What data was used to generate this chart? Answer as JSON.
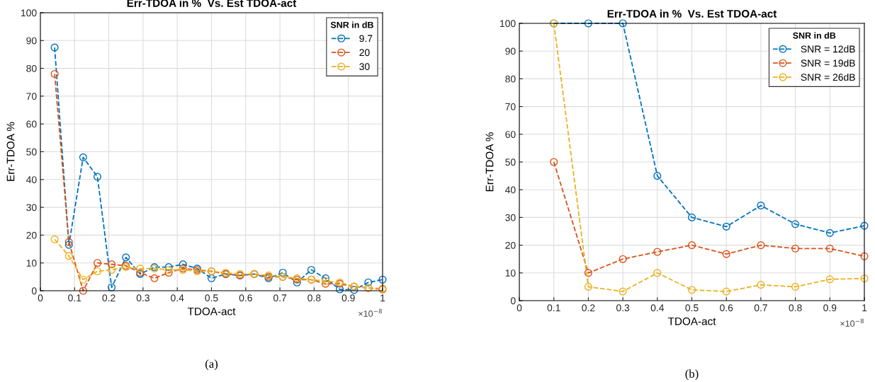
{
  "chart_data": [
    {
      "type": "line",
      "title": "Err-TDOA in %  Vs. Est TDOA-act",
      "xlabel": "TDOA-act",
      "ylabel": "Err-TDOA %",
      "legend_title": "SNR in dB",
      "x": [
        0.0417,
        0.0833,
        0.125,
        0.1667,
        0.2083,
        0.25,
        0.2917,
        0.3333,
        0.375,
        0.4167,
        0.4583,
        0.5,
        0.5417,
        0.5833,
        0.625,
        0.6667,
        0.7083,
        0.75,
        0.7917,
        0.8333,
        0.875,
        0.9167,
        0.9583,
        1.0
      ],
      "series": [
        {
          "name": "9.7",
          "color": "#0072bd",
          "values": [
            87.5,
            16.5,
            48,
            41,
            1.2,
            12,
            6,
            8.5,
            8.5,
            9.5,
            8,
            4.5,
            6,
            5.5,
            6,
            4.5,
            6.5,
            3,
            7.5,
            4.5,
            0.5,
            0.3,
            3,
            4
          ]
        },
        {
          "name": "20",
          "color": "#d95319",
          "values": [
            78,
            17.5,
            0,
            10,
            9.5,
            9,
            6.5,
            4.5,
            6.5,
            8,
            7.5,
            7,
            6,
            5.5,
            6,
            5,
            5,
            4,
            4,
            2.5,
            2.5,
            1.5,
            1,
            0.5
          ]
        },
        {
          "name": "30",
          "color": "#edb120",
          "values": [
            18.5,
            12.5,
            4,
            7,
            7.5,
            8.5,
            8,
            8,
            7.5,
            7.5,
            7,
            7,
            6.5,
            6,
            6,
            5.5,
            5,
            4.5,
            4,
            3.5,
            3,
            1.5,
            1,
            0.8
          ]
        }
      ],
      "xlim": [
        0,
        1
      ],
      "xticks": [
        0,
        0.1,
        0.2,
        0.3,
        0.4,
        0.5,
        0.6,
        0.7,
        0.8,
        0.9,
        1
      ],
      "ylim": [
        0,
        100
      ],
      "yticks": [
        0,
        10,
        20,
        30,
        40,
        50,
        60,
        70,
        80,
        90,
        100
      ],
      "grid": true,
      "legend": "top right",
      "marker": "circle",
      "line_style": "dashed",
      "annotations": [
        "×10$^{−8}$",
        "(a)"
      ]
    },
    {
      "type": "line",
      "title": "Err-TDOA in %  Vs. Est TDOA-act",
      "xlabel": "TDOA-act",
      "ylabel": "Err-TDOA %",
      "legend_title": "SNR in dB",
      "x": [
        0.1,
        0.2,
        0.3,
        0.4,
        0.5,
        0.6,
        0.7,
        0.8,
        0.9,
        1.0
      ],
      "series": [
        {
          "name": "SNR = 12dB",
          "color": "#0072bd",
          "values": [
            100,
            100,
            100,
            45,
            30,
            26.7,
            34.3,
            27.6,
            24.4,
            27
          ]
        },
        {
          "name": "SNR = 19dB",
          "color": "#d95319",
          "values": [
            50,
            10,
            15,
            17.6,
            20,
            16.8,
            20,
            18.8,
            18.8,
            16
          ]
        },
        {
          "name": "SNR = 26dB",
          "color": "#edb120",
          "values": [
            100,
            5,
            3.3,
            10,
            3.9,
            3.3,
            5.7,
            5,
            7.7,
            8
          ]
        }
      ],
      "xlim": [
        0,
        1
      ],
      "xticks": [
        0,
        0.1,
        0.2,
        0.3,
        0.4,
        0.5,
        0.6,
        0.7,
        0.8,
        0.9,
        1
      ],
      "ylim": [
        0,
        100
      ],
      "yticks": [
        0,
        10,
        20,
        30,
        40,
        50,
        60,
        70,
        80,
        90,
        100
      ],
      "grid": true,
      "legend": "top right",
      "marker": "circle",
      "line_style": "dashed",
      "annotations": [
        "×10$^{−8}$",
        "(b)"
      ]
    }
  ]
}
